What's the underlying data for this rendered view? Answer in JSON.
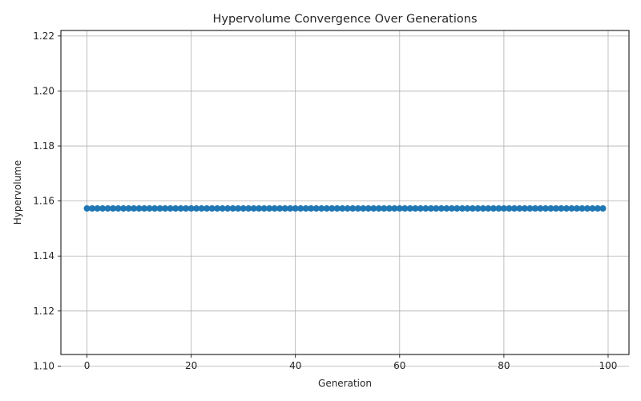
{
  "chart_data": {
    "type": "line",
    "title": "Hypervolume Convergence Over Generations",
    "xlabel": "Generation",
    "ylabel": "Hypervolume",
    "xlim": [
      -5,
      104
    ],
    "ylim": [
      1.1042,
      1.222
    ],
    "x_ticks": [
      0,
      20,
      40,
      60,
      80,
      100
    ],
    "y_ticks": [
      1.1,
      1.12,
      1.14,
      1.16,
      1.18,
      1.2,
      1.22
    ],
    "x_tick_labels": [
      "0",
      "20",
      "40",
      "60",
      "80",
      "100"
    ],
    "y_tick_labels": [
      "1.10",
      "1.12",
      "1.14",
      "1.16",
      "1.18",
      "1.20",
      "1.22"
    ],
    "grid": true,
    "marker": "circle",
    "series": [
      {
        "color": "#1f77b4",
        "x_start": 0,
        "x_end": 99,
        "x_step": 1,
        "y_constant": 1.1573
      }
    ]
  }
}
